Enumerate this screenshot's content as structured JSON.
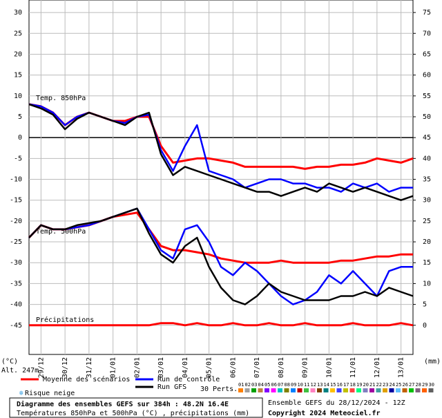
{
  "chart_data": {
    "type": "line",
    "title": "Diagramme des ensembles GEFS sur 384h : 48.2N 16.4E",
    "subtitle": "Températures 850hPa et 500hPa (°C) , précipitations (mm)",
    "run_label": "Ensemble GEFS du 28/12/2024 - 12Z",
    "copyright": "Copyright 2024 Meteociel.fr",
    "y_label": "(°C)",
    "y2_label": "(mm)",
    "altitude": "Alt. 247m",
    "annotations": [
      "Temp. 850hPa",
      "Temp. 500hPa"
    ],
    "snow_label": "Risque neige",
    "x": [
      0,
      12,
      24,
      36,
      48,
      60,
      72,
      84,
      96,
      108,
      120,
      132,
      144,
      156,
      168,
      180,
      192,
      204,
      216,
      228,
      240,
      252,
      264,
      276,
      288,
      300,
      312,
      324,
      336,
      348,
      360,
      372,
      384
    ],
    "xlim": [
      0,
      384
    ],
    "xticks": [
      {
        "value": 12,
        "label": "29/12"
      },
      {
        "value": 36,
        "label": "30/12"
      },
      {
        "value": 60,
        "label": "31/12"
      },
      {
        "value": 84,
        "label": "01/01"
      },
      {
        "value": 108,
        "label": "02/01"
      },
      {
        "value": 132,
        "label": "03/01"
      },
      {
        "value": 156,
        "label": "04/01"
      },
      {
        "value": 180,
        "label": "05/01"
      },
      {
        "value": 204,
        "label": "06/01"
      },
      {
        "value": 228,
        "label": "07/01"
      },
      {
        "value": 252,
        "label": "08/01"
      },
      {
        "value": 276,
        "label": "09/01"
      },
      {
        "value": 300,
        "label": "10/01"
      },
      {
        "value": 324,
        "label": "11/01"
      },
      {
        "value": 348,
        "label": "12/01"
      },
      {
        "value": 372,
        "label": "13/01"
      }
    ],
    "ylim": [
      -52,
      33
    ],
    "yticks": [
      30,
      25,
      20,
      15,
      10,
      5,
      0,
      -5,
      -10,
      -15,
      -20,
      -25,
      -30,
      -35,
      -40,
      -45
    ],
    "y2lim": [
      -7,
      78
    ],
    "y2ticks": [
      75,
      70,
      65,
      60,
      55,
      50,
      45,
      40,
      35,
      30,
      25,
      20,
      15,
      10,
      5,
      0
    ],
    "grid": true,
    "series": [
      {
        "name": "Moyenne des scénarios",
        "color": "#ff0000",
        "width": 3,
        "values": [
          8,
          7.5,
          6,
          3,
          5,
          6,
          5,
          4,
          4,
          5,
          5,
          -2,
          -6,
          -5.5,
          -5,
          -5,
          -5.5,
          -6,
          -7,
          -7,
          -7,
          -7,
          -7,
          -7.5,
          -7,
          -7,
          -6.5,
          -6.5,
          -6,
          -5,
          -5.5,
          -6,
          -5
        ]
      },
      {
        "name": "Run de contrôle",
        "color": "#0000ff",
        "width": 2.5,
        "values": [
          8,
          7.5,
          6,
          3,
          5,
          6,
          5,
          4,
          3.5,
          5,
          5.5,
          -3,
          -8,
          -2,
          3,
          -8,
          -9,
          -10,
          -12,
          -11,
          -10,
          -10,
          -11,
          -11,
          -12,
          -12,
          -13,
          -11,
          -12,
          -11,
          -13,
          -12,
          -12
        ]
      },
      {
        "name": "Run GFS",
        "color": "#000000",
        "width": 2.5,
        "values": [
          8,
          7,
          5.5,
          2,
          4.5,
          6,
          5,
          4,
          3,
          5,
          6,
          -4,
          -9,
          -7,
          -8,
          -9,
          -10,
          -11,
          -12,
          -13,
          -13,
          -14,
          -13,
          -12,
          -13,
          -11,
          -12,
          -13,
          -12,
          -13,
          -14,
          -15,
          -14
        ]
      },
      {
        "name": "Moyenne des scénarios",
        "color": "#ff0000",
        "width": 3,
        "values": [
          -24,
          -21,
          -22,
          -22,
          -21.5,
          -21,
          -20,
          -19,
          -18.5,
          -18,
          -22,
          -26,
          -27,
          -27,
          -27.5,
          -28,
          -29,
          -29.5,
          -30,
          -30,
          -30,
          -29.5,
          -30,
          -30,
          -30,
          -30,
          -29.5,
          -29.5,
          -29,
          -28.5,
          -28.5,
          -28,
          -28
        ]
      },
      {
        "name": "Run de contrôle",
        "color": "#0000ff",
        "width": 2.5,
        "values": [
          -24,
          -21,
          -22,
          -22,
          -21.5,
          -21,
          -20,
          -19,
          -18,
          -17,
          -22,
          -27,
          -29,
          -22,
          -21,
          -25,
          -31,
          -33,
          -30,
          -32,
          -35,
          -38,
          -40,
          -39,
          -37,
          -33,
          -35,
          -32,
          -35,
          -38,
          -32,
          -31,
          -31
        ]
      },
      {
        "name": "Run GFS",
        "color": "#000000",
        "width": 2.5,
        "values": [
          -24,
          -21,
          -22,
          -22,
          -21,
          -20.5,
          -20,
          -19,
          -18,
          -17,
          -23,
          -28,
          -30,
          -26,
          -24,
          -31,
          -36,
          -39,
          -40,
          -38,
          -35,
          -37,
          -38,
          -39,
          -39,
          -39,
          -38,
          -38,
          -37,
          -38,
          -36,
          -37,
          -38
        ]
      },
      {
        "name": "Précipitations",
        "color": "#ff0000",
        "width": 3,
        "axis": "y2",
        "values": [
          0,
          0,
          0,
          0,
          0,
          0,
          0,
          0,
          0,
          0,
          0,
          0.5,
          0.5,
          0,
          0.5,
          0,
          0,
          0.5,
          0,
          0,
          0.5,
          0,
          0,
          0.5,
          0,
          0,
          0,
          0.5,
          0,
          0,
          0,
          0.5,
          0
        ]
      }
    ],
    "perts": {
      "label": "30 Perts.",
      "items": [
        "01",
        "02",
        "03",
        "04",
        "05",
        "06",
        "07",
        "08",
        "09",
        "10",
        "11",
        "12",
        "13",
        "14",
        "15",
        "16",
        "17",
        "18",
        "19",
        "20",
        "21",
        "22",
        "23",
        "24",
        "25",
        "26",
        "27",
        "28",
        "29",
        "30"
      ],
      "colors": [
        "#ff8000",
        "#a0a0a0",
        "#00a000",
        "#c08040",
        "#8000ff",
        "#ff00ff",
        "#00c0c0",
        "#808000",
        "#0080ff",
        "#c00000",
        "#40c040",
        "#ff80c0",
        "#804000",
        "#008080",
        "#ffc000",
        "#4040ff",
        "#c0c000",
        "#ff4040",
        "#00ff80",
        "#8080c0",
        "#a000a0",
        "#40a0a0",
        "#e0a000",
        "#0000a0",
        "#60c0ff",
        "#c06000",
        "#00c000",
        "#806080",
        "#ff6000",
        "#606060"
      ]
    }
  }
}
